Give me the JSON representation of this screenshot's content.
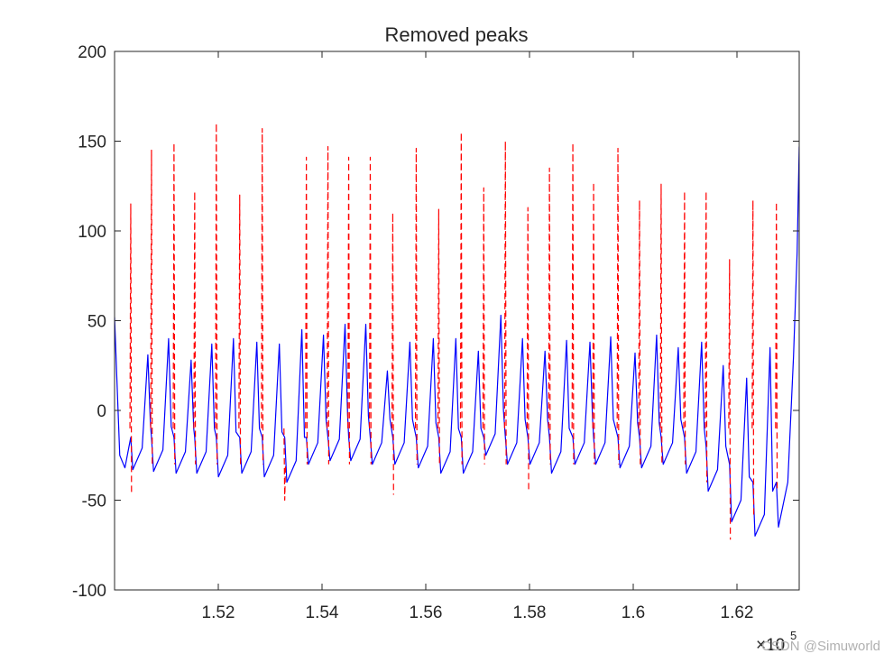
{
  "chart_data": {
    "type": "line",
    "title": "Removed peaks",
    "xlim": [
      150000,
      163200
    ],
    "xticks": [
      {
        "value": 152000,
        "label": "1.52"
      },
      {
        "value": 154000,
        "label": "1.54"
      },
      {
        "value": 156000,
        "label": "1.56"
      },
      {
        "value": 158000,
        "label": "1.58"
      },
      {
        "value": 160000,
        "label": "1.6"
      },
      {
        "value": 162000,
        "label": "1.62"
      }
    ],
    "x_multiplier": {
      "base": "×10",
      "power": "5"
    },
    "ylim": [
      -100,
      200
    ],
    "yticks": [
      -100,
      -50,
      0,
      50,
      100,
      150,
      200
    ],
    "grid": false,
    "watermark": "CSDN @Simuworld",
    "series": [
      {
        "color": "#0000ff",
        "dash": false,
        "x": [
          150000,
          150100,
          150200,
          150312,
          150352,
          150532,
          150642,
          150692,
          150712,
          150752,
          150932,
          151042,
          151092,
          151146,
          151186,
          151366,
          151476,
          151526,
          151545,
          151585,
          151765,
          151875,
          151925,
          151962,
          152002,
          152182,
          152292,
          152342,
          152413,
          152453,
          152633,
          152743,
          152793,
          152847,
          152887,
          153067,
          153177,
          153227,
          153281,
          153321,
          153501,
          153611,
          153661,
          153698,
          153738,
          153918,
          154028,
          154078,
          154114,
          154154,
          154334,
          154444,
          154494,
          154514,
          154554,
          154734,
          154844,
          154894,
          154930,
          154970,
          155150,
          155260,
          155310,
          155364,
          155404,
          155584,
          155694,
          155744,
          155816,
          155856,
          156036,
          156146,
          156196,
          156250,
          156290,
          156470,
          156580,
          156630,
          156684,
          156724,
          156904,
          157014,
          157064,
          157118,
          157158,
          157338,
          157448,
          157498,
          157535,
          157575,
          157755,
          157865,
          157915,
          157969,
          158009,
          158189,
          158299,
          158349,
          158385,
          158425,
          158605,
          158715,
          158765,
          158836,
          158876,
          159056,
          159166,
          159216,
          159236,
          159276,
          159456,
          159566,
          159616,
          159705,
          159745,
          159925,
          160035,
          160085,
          160121,
          160161,
          160341,
          160451,
          160501,
          160538,
          160578,
          160758,
          160868,
          160918,
          160989,
          161029,
          161209,
          161319,
          161369,
          161405,
          161445,
          161625,
          161735,
          161785,
          161857,
          161897,
          162077,
          162187,
          162237,
          162308,
          162348,
          162528,
          162638,
          162688,
          162760,
          162800,
          162980,
          163090,
          163160,
          163200
        ],
        "y": [
          52,
          -25,
          -32,
          -15,
          -33,
          -21,
          31,
          -8,
          -15,
          -34,
          -22,
          40,
          -9,
          -15,
          -35,
          -23,
          28,
          -10,
          -15,
          -35,
          -23,
          37,
          -10,
          -15,
          -37,
          -25,
          40,
          -12,
          -15,
          -35,
          -23,
          38,
          -10,
          -15,
          -37,
          -25,
          37,
          -12,
          -15,
          -40,
          -28,
          45,
          -15,
          -15,
          -30,
          -18,
          42,
          -5,
          -15,
          -28,
          -16,
          48,
          -3,
          -15,
          -28,
          -16,
          48,
          -3,
          -15,
          -30,
          -18,
          22,
          -5,
          -15,
          -30,
          -18,
          38,
          -5,
          -15,
          -32,
          -20,
          40,
          -7,
          -15,
          -35,
          -23,
          40,
          -10,
          -15,
          -35,
          -23,
          33,
          -10,
          -15,
          -25,
          -13,
          53,
          0,
          -15,
          -30,
          -18,
          40,
          -5,
          -15,
          -30,
          -18,
          33,
          -5,
          -15,
          -35,
          -23,
          39,
          -10,
          -15,
          -30,
          -18,
          38,
          -5,
          -15,
          -30,
          -18,
          41,
          -5,
          -15,
          -32,
          -20,
          32,
          -7,
          -15,
          -32,
          -20,
          42,
          -7,
          -15,
          -30,
          -18,
          35,
          -5,
          -15,
          -35,
          -23,
          38,
          -10,
          -20,
          -45,
          -33,
          25,
          -20,
          -30,
          -62,
          -50,
          18,
          -37,
          -40,
          -70,
          -58,
          35,
          -45,
          -40,
          -65,
          -40,
          30,
          88,
          147
        ]
      },
      {
        "color": "#ff0000",
        "dash": true,
        "x": [
          150297,
          150312,
          150327,
          null,
          150697,
          150712,
          150727,
          null,
          151131,
          151146,
          151161,
          null,
          151530,
          151545,
          151560,
          null,
          151947,
          151962,
          151977,
          null,
          152398,
          152413,
          152428,
          null,
          152832,
          152847,
          152862,
          null,
          153266,
          153281,
          153296,
          null,
          153683,
          153698,
          153713,
          null,
          154099,
          154114,
          154129,
          null,
          154499,
          154514,
          154529,
          null,
          154915,
          154930,
          154945,
          null,
          155349,
          155364,
          155379,
          null,
          155801,
          155816,
          155831,
          null,
          156235,
          156250,
          156265,
          null,
          156669,
          156684,
          156699,
          null,
          157103,
          157118,
          157133,
          null,
          157520,
          157535,
          157550,
          null,
          157954,
          157969,
          157984,
          null,
          158370,
          158385,
          158400,
          null,
          158821,
          158836,
          158851,
          null,
          159221,
          159236,
          159251,
          null,
          159690,
          159705,
          159720,
          null,
          160106,
          160121,
          160136,
          null,
          160523,
          160538,
          160553,
          null,
          160974,
          160989,
          161004,
          null,
          161390,
          161405,
          161420,
          null,
          161842,
          161857,
          161872,
          null,
          162293,
          162308,
          162323,
          null,
          162745,
          162760,
          162775
        ],
        "y": [
          -10,
          115,
          -47,
          null,
          -10,
          145,
          -30,
          null,
          -10,
          149,
          -30,
          null,
          -10,
          122,
          -30,
          null,
          -10,
          160,
          -30,
          null,
          -10,
          120,
          -30,
          null,
          -10,
          157,
          -30,
          null,
          -10,
          -50,
          -30,
          null,
          -10,
          141,
          -30,
          null,
          -10,
          147,
          -30,
          null,
          -10,
          141,
          -30,
          null,
          -10,
          141,
          -30,
          null,
          -10,
          110,
          -47,
          null,
          -10,
          146,
          -30,
          null,
          -10,
          112,
          -30,
          null,
          -10,
          155,
          -30,
          null,
          -10,
          124,
          -30,
          null,
          -10,
          150,
          -30,
          null,
          -10,
          113,
          -45,
          null,
          -10,
          135,
          -30,
          null,
          -10,
          149,
          -30,
          null,
          -10,
          127,
          -30,
          null,
          -10,
          146,
          -30,
          null,
          -10,
          117,
          -30,
          null,
          -10,
          126,
          -30,
          null,
          -10,
          122,
          -30,
          null,
          -10,
          122,
          -40,
          null,
          -10,
          84,
          -72,
          null,
          -10,
          117,
          -60,
          null,
          -10,
          116,
          -45
        ]
      }
    ]
  }
}
